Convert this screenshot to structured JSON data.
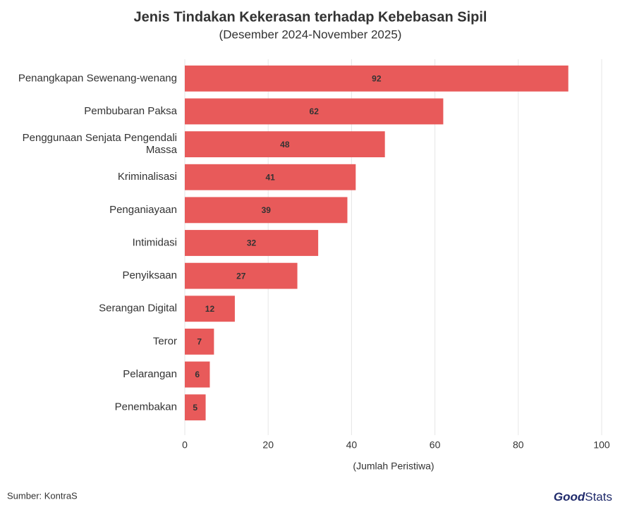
{
  "chart_data": {
    "type": "barh",
    "title": "Jenis Tindakan Kekerasan terhadap Kebebasan Sipil",
    "subtitle": "(Desember 2024-November 2025)",
    "x_label": "(Jumlah Peristiwa)",
    "source": "Sumber: KontraS",
    "logo": [
      "Good",
      "Stats"
    ],
    "categories": [
      "Penangkapan Sewenang-wenang",
      "Pembubaran Paksa",
      "Penggunaan Senjata Pengendali Massa",
      "Kriminalisasi",
      "Penganiayaan",
      "Intimidasi",
      "Penyiksaan",
      "Serangan Digital",
      "Teror",
      "Pelarangan",
      "Penembakan"
    ],
    "values": [
      92,
      62,
      48,
      41,
      39,
      32,
      27,
      12,
      7,
      6,
      5
    ],
    "color": "#e85a5a",
    "xlim": [
      0,
      100
    ],
    "xticks": [
      0,
      20,
      40,
      60,
      80,
      100
    ],
    "grid": true
  }
}
